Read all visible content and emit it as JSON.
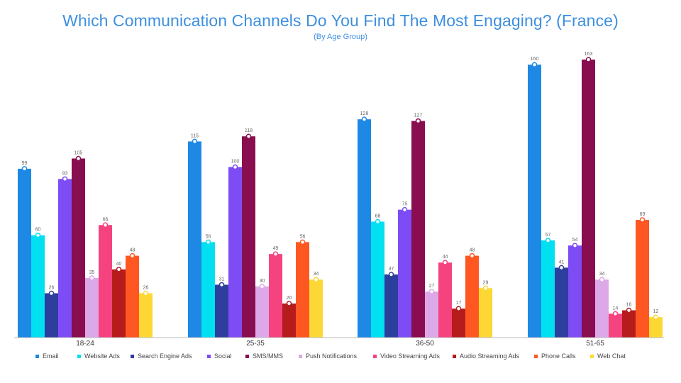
{
  "chart_data": {
    "type": "bar",
    "title": "Which Communication Channels Do You Find The Most Engaging? (France)",
    "subtitle": "(By Age Group)",
    "xlabel": "",
    "ylabel": "",
    "categories": [
      "18-24",
      "25-35",
      "36-50",
      "51-65"
    ],
    "ylim": [
      0,
      170
    ],
    "grid": false,
    "legend_position": "bottom",
    "series": [
      {
        "name": "Email",
        "color": "#1e88e5",
        "values": [
          99,
          115,
          128,
          160
        ]
      },
      {
        "name": "Website Ads",
        "color": "#00e0f0",
        "values": [
          60,
          56,
          68,
          57
        ]
      },
      {
        "name": "Search Engine Ads",
        "color": "#2e3e9c",
        "values": [
          26,
          31,
          37,
          41
        ]
      },
      {
        "name": "Social",
        "color": "#7e4cf5",
        "values": [
          93,
          100,
          75,
          54
        ]
      },
      {
        "name": "SMS/MMS",
        "color": "#880e4f",
        "values": [
          105,
          118,
          127,
          163
        ]
      },
      {
        "name": "Push Notifications",
        "color": "#dca8e8",
        "values": [
          35,
          30,
          27,
          34
        ]
      },
      {
        "name": "Video Streaming Ads",
        "color": "#f5437f",
        "values": [
          66,
          49,
          44,
          14
        ]
      },
      {
        "name": "Audio Streaming Ads",
        "color": "#b71c1c",
        "values": [
          40,
          20,
          17,
          16
        ]
      },
      {
        "name": "Phone Calls",
        "color": "#ff5722",
        "values": [
          48,
          56,
          48,
          69
        ]
      },
      {
        "name": "Web Chat",
        "color": "#fdd835",
        "values": [
          26,
          34,
          29,
          12
        ]
      }
    ]
  }
}
